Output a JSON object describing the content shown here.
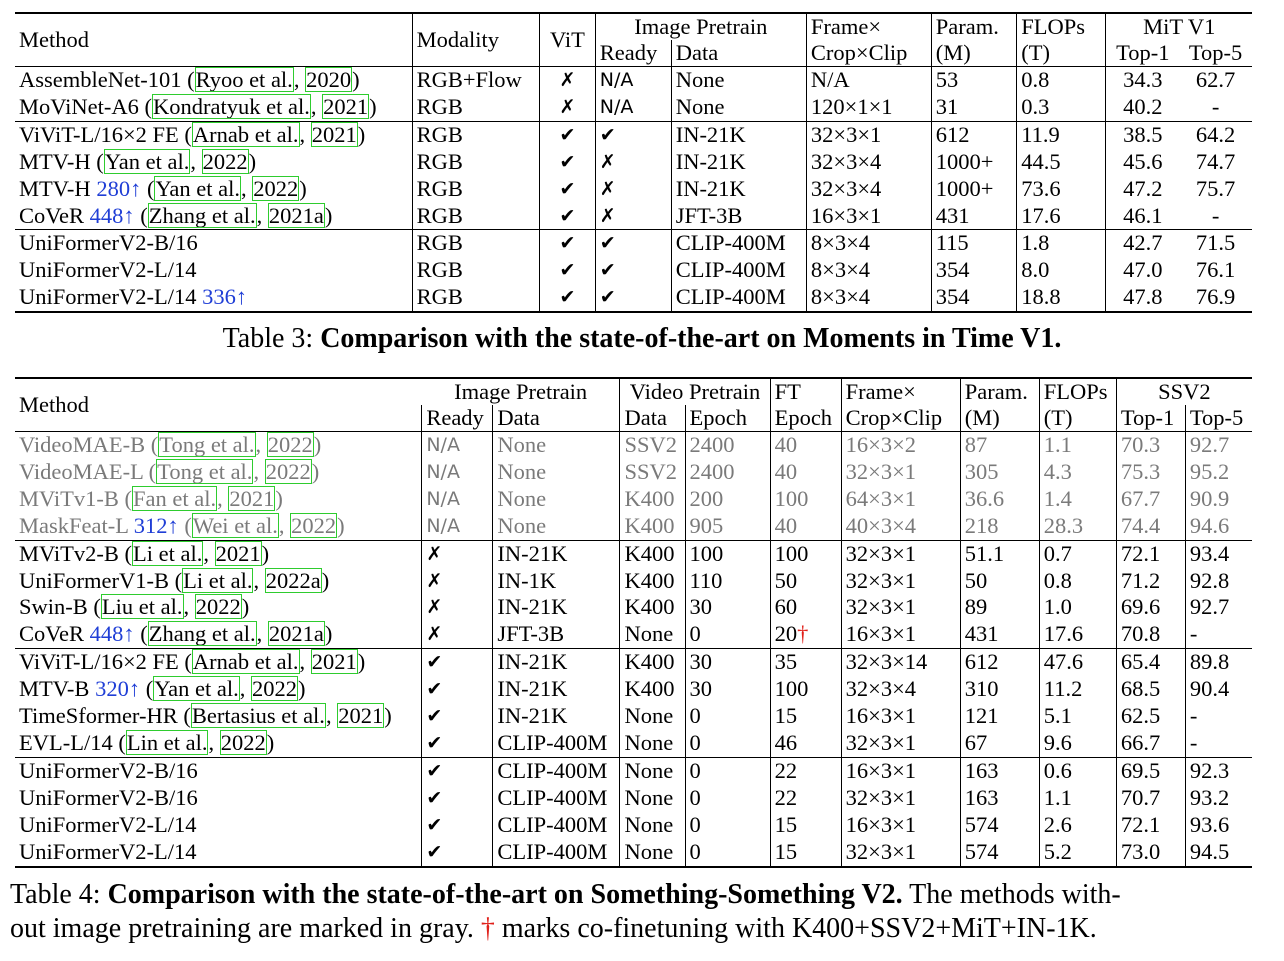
{
  "table3": {
    "headers": {
      "method": "Method",
      "modality": "Modality",
      "vit": "ViT",
      "image_pretrain": "Image Pretrain",
      "ready": "Ready",
      "data": "Data",
      "frame_line1": "Frame×",
      "frame_line2": "Crop×Clip",
      "param_line1": "Param.",
      "param_line2": "(M)",
      "flops_line1": "FLOPs",
      "flops_line2": "(T)",
      "dataset": "MiT V1",
      "top1": "Top-1",
      "top5": "Top-5"
    },
    "rows": [
      {
        "method": "AssembleNet-101 (",
        "cite_a": "Ryoo et al.",
        "sep": ", ",
        "cite_b": "2020",
        "close": ")",
        "res": "",
        "modality": "RGB+Flow",
        "vit": "✗",
        "ready": "N/A",
        "data": "None",
        "frames": "N/A",
        "param": "53",
        "flops": "0.8",
        "top1": "34.3",
        "top5": "62.7"
      },
      {
        "method": "MoViNet-A6 (",
        "cite_a": "Kondratyuk et al.",
        "sep": ", ",
        "cite_b": "2021",
        "close": ")",
        "res": "",
        "modality": "RGB",
        "vit": "✗",
        "ready": "N/A",
        "data": "None",
        "frames": "120×1×1",
        "param": "31",
        "flops": "0.3",
        "top1": "40.2",
        "top5": "-"
      },
      {
        "method": "ViViT-L/16×2 FE (",
        "cite_a": "Arnab et al.",
        "sep": ", ",
        "cite_b": "2021",
        "close": ")",
        "res": "",
        "modality": "RGB",
        "vit": "✔",
        "ready": "✔",
        "data": "IN-21K",
        "frames": "32×3×1",
        "param": "612",
        "flops": "11.9",
        "top1": "38.5",
        "top5": "64.2"
      },
      {
        "method": "MTV-H (",
        "cite_a": "Yan et al.",
        "sep": ", ",
        "cite_b": "2022",
        "close": ")",
        "res": "",
        "modality": "RGB",
        "vit": "✔",
        "ready": "✗",
        "data": "IN-21K",
        "frames": "32×3×4",
        "param": "1000+",
        "flops": "44.5",
        "top1": "45.6",
        "top5": "74.7"
      },
      {
        "method": "MTV-H ",
        "res": "280↑",
        "method2": " (",
        "cite_a": "Yan et al.",
        "sep": ", ",
        "cite_b": "2022",
        "close": ")",
        "modality": "RGB",
        "vit": "✔",
        "ready": "✗",
        "data": "IN-21K",
        "frames": "32×3×4",
        "param": "1000+",
        "flops": "73.6",
        "top1": "47.2",
        "top5": "75.7"
      },
      {
        "method": "CoVeR ",
        "res": "448↑",
        "method2": " (",
        "cite_a": "Zhang et al.",
        "sep": ", ",
        "cite_b": "2021a",
        "close": ")",
        "modality": "RGB",
        "vit": "✔",
        "ready": "✗",
        "data": "JFT-3B",
        "frames": "16×3×1",
        "param": "431",
        "flops": "17.6",
        "top1": "46.1",
        "top5": "-"
      },
      {
        "method": "UniFormerV2-B/16",
        "modality": "RGB",
        "vit": "✔",
        "ready": "✔",
        "data": "CLIP-400M",
        "frames": "8×3×4",
        "param": "115",
        "flops": "1.8",
        "top1": "42.7",
        "top5": "71.5"
      },
      {
        "method": "UniFormerV2-L/14",
        "modality": "RGB",
        "vit": "✔",
        "ready": "✔",
        "data": "CLIP-400M",
        "frames": "8×3×4",
        "param": "354",
        "flops": "8.0",
        "top1": "47.0",
        "top5": "76.1"
      },
      {
        "method": "UniFormerV2-L/14 ",
        "res": "336↑",
        "modality": "RGB",
        "vit": "✔",
        "ready": "✔",
        "data": "CLIP-400M",
        "frames": "8×3×4",
        "param": "354",
        "flops": "18.8",
        "top1": "47.8",
        "top5": "76.9"
      }
    ],
    "caption_prefix": "Table 3: ",
    "caption_bold": "Comparison with the state-of-the-art on Moments in Time V1."
  },
  "table4": {
    "headers": {
      "method": "Method",
      "image_pretrain": "Image Pretrain",
      "ready": "Ready",
      "data": "Data",
      "video_pretrain": "Video Pretrain",
      "vdata": "Data",
      "epoch": "Epoch",
      "ft": "FT",
      "ft_epoch": "Epoch",
      "frame_line1": "Frame×",
      "frame_line2": "Crop×Clip",
      "param_line1": "Param.",
      "param_line2": "(M)",
      "flops_line1": "FLOPs",
      "flops_line2": "(T)",
      "dataset": "SSV2",
      "top1": "Top-1",
      "top5": "Top-5"
    },
    "rows": [
      {
        "gray": true,
        "method": "VideoMAE-B (",
        "cite_a": "Tong et al.",
        "sep": ", ",
        "cite_b": "2022",
        "close": ")",
        "ready": "N/A",
        "data": "None",
        "vdata": "SSV2",
        "epoch": "2400",
        "ft": "40",
        "frames": "16×3×2",
        "param": "87",
        "flops": "1.1",
        "top1": "70.3",
        "top5": "92.7"
      },
      {
        "gray": true,
        "method": "VideoMAE-L (",
        "cite_a": "Tong et al.",
        "sep": ", ",
        "cite_b": "2022",
        "close": ")",
        "ready": "N/A",
        "data": "None",
        "vdata": "SSV2",
        "epoch": "2400",
        "ft": "40",
        "frames": "32×3×1",
        "param": "305",
        "flops": "4.3",
        "top1": "75.3",
        "top5": "95.2"
      },
      {
        "gray": true,
        "method": "MViTv1-B (",
        "cite_a": "Fan et al.",
        "sep": ", ",
        "cite_b": "2021",
        "close": ")",
        "ready": "N/A",
        "data": "None",
        "vdata": "K400",
        "epoch": "200",
        "ft": "100",
        "frames": "64×3×1",
        "param": "36.6",
        "flops": "1.4",
        "top1": "67.7",
        "top5": "90.9"
      },
      {
        "gray": true,
        "method": "MaskFeat-L ",
        "res": "312↑",
        "method2": " (",
        "cite_a": "Wei et al.",
        "sep": ", ",
        "cite_b": "2022",
        "close": ")",
        "ready": "N/A",
        "data": "None",
        "vdata": "K400",
        "epoch": "905",
        "ft": "40",
        "frames": "40×3×4",
        "param": "218",
        "flops": "28.3",
        "top1": "74.4",
        "top5": "94.6"
      },
      {
        "method": "MViTv2-B (",
        "cite_a": "Li et al.",
        "sep": ", ",
        "cite_b": "2021",
        "close": ")",
        "ready": "✗",
        "data": "IN-21K",
        "vdata": "K400",
        "epoch": "100",
        "ft": "100",
        "frames": "32×3×1",
        "param": "51.1",
        "flops": "0.7",
        "top1": "72.1",
        "top5": "93.4"
      },
      {
        "method": "UniFormerV1-B (",
        "cite_a": "Li et al.",
        "sep": ", ",
        "cite_b": "2022a",
        "close": ")",
        "ready": "✗",
        "data": "IN-1K",
        "vdata": "K400",
        "epoch": "110",
        "ft": "50",
        "frames": "32×3×1",
        "param": "50",
        "flops": "0.8",
        "top1": "71.2",
        "top5": "92.8"
      },
      {
        "method": "Swin-B (",
        "cite_a": "Liu et al.",
        "sep": ", ",
        "cite_b": "2022",
        "close": ")",
        "ready": "✗",
        "data": "IN-21K",
        "vdata": "K400",
        "epoch": "30",
        "ft": "60",
        "frames": "32×3×1",
        "param": "89",
        "flops": "1.0",
        "top1": "69.6",
        "top5": "92.7"
      },
      {
        "method": "CoVeR ",
        "res": "448↑",
        "method2": " (",
        "cite_a": "Zhang et al.",
        "sep": ", ",
        "cite_b": "2021a",
        "close": ")",
        "ready": "✗",
        "data": "JFT-3B",
        "vdata": "None",
        "epoch": "0",
        "ft": "20",
        "ft_mark": "†",
        "frames": "16×3×1",
        "param": "431",
        "flops": "17.6",
        "top1": "70.8",
        "top5": "-"
      },
      {
        "method": "ViViT-L/16×2 FE (",
        "cite_a": "Arnab et al.",
        "sep": ", ",
        "cite_b": "2021",
        "close": ")",
        "ready": "✔",
        "data": "IN-21K",
        "vdata": "K400",
        "epoch": "30",
        "ft": "35",
        "frames": "32×3×14",
        "param": "612",
        "flops": "47.6",
        "top1": "65.4",
        "top5": "89.8"
      },
      {
        "method": "MTV-B ",
        "res": "320↑",
        "method2": " (",
        "cite_a": "Yan et al.",
        "sep": ", ",
        "cite_b": "2022",
        "close": ")",
        "ready": "✔",
        "data": "IN-21K",
        "vdata": "K400",
        "epoch": "30",
        "ft": "100",
        "frames": "32×3×4",
        "param": "310",
        "flops": "11.2",
        "top1": "68.5",
        "top5": "90.4"
      },
      {
        "method": "TimeSformer-HR (",
        "cite_a": "Bertasius et al.",
        "sep": ", ",
        "cite_b": "2021",
        "close": ")",
        "ready": "✔",
        "data": "IN-21K",
        "vdata": "None",
        "epoch": "0",
        "ft": "15",
        "frames": "16×3×1",
        "param": "121",
        "flops": "5.1",
        "top1": "62.5",
        "top5": "-"
      },
      {
        "method": "EVL-L/14 (",
        "cite_a": "Lin et al.",
        "sep": ", ",
        "cite_b": "2022",
        "close": ")",
        "ready": "✔",
        "data": "CLIP-400M",
        "vdata": "None",
        "epoch": "0",
        "ft": "46",
        "frames": "32×3×1",
        "param": "67",
        "flops": "9.6",
        "top1": "66.7",
        "top5": "-"
      },
      {
        "method": "UniFormerV2-B/16",
        "ready": "✔",
        "data": "CLIP-400M",
        "vdata": "None",
        "epoch": "0",
        "ft": "22",
        "frames": "16×3×1",
        "param": "163",
        "flops": "0.6",
        "top1": "69.5",
        "top5": "92.3"
      },
      {
        "method": "UniFormerV2-B/16",
        "ready": "✔",
        "data": "CLIP-400M",
        "vdata": "None",
        "epoch": "0",
        "ft": "22",
        "frames": "32×3×1",
        "param": "163",
        "flops": "1.1",
        "top1": "70.7",
        "top5": "93.2"
      },
      {
        "method": "UniFormerV2-L/14",
        "ready": "✔",
        "data": "CLIP-400M",
        "vdata": "None",
        "epoch": "0",
        "ft": "15",
        "frames": "16×3×1",
        "param": "574",
        "flops": "2.6",
        "top1": "72.1",
        "top5": "93.6"
      },
      {
        "method": "UniFormerV2-L/14",
        "ready": "✔",
        "data": "CLIP-400M",
        "vdata": "None",
        "epoch": "0",
        "ft": "15",
        "frames": "32×3×1",
        "param": "574",
        "flops": "5.2",
        "top1": "73.0",
        "top5": "94.5"
      }
    ],
    "caption_prefix": "Table 4: ",
    "caption_bold": "Comparison with the state-of-the-art on Something-Something V2.",
    "caption_rest": " The methods with-",
    "caption_line2a": "out image pretraining are marked in gray. ",
    "caption_dagger": "†",
    "caption_line2b": " marks co-finetuning with K400+SSV2+MiT+IN-1K."
  },
  "colors": {
    "gray_text": "#7a7a7a",
    "citation_box": "#2ecc2e",
    "resolution_link": "#1f3ed6",
    "dagger": "#e0201a"
  }
}
